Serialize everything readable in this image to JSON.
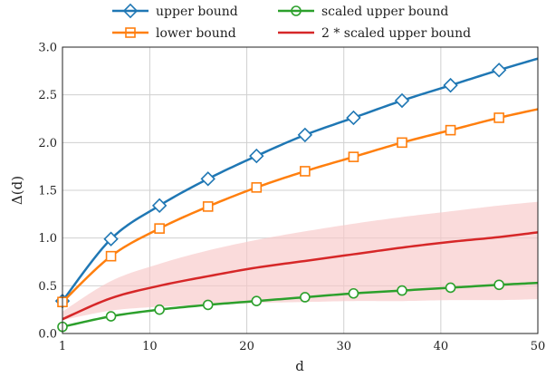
{
  "chart_data": {
    "type": "line",
    "xlabel": "d",
    "ylabel": "Δ(d)",
    "xlim": [
      1,
      50
    ],
    "ylim": [
      0.0,
      3.0
    ],
    "xticks": [
      1,
      10,
      20,
      30,
      40,
      50
    ],
    "yticks": [
      0.0,
      0.5,
      1.0,
      1.5,
      2.0,
      2.5,
      3.0
    ],
    "grid": true,
    "legend_position": "top-outside",
    "marker_x": [
      1,
      6,
      11,
      16,
      21,
      26,
      31,
      36,
      41,
      46
    ],
    "series": [
      {
        "name": "upper bound",
        "color": "#1f77b4",
        "marker": "diamond",
        "x": [
          1,
          6,
          11,
          16,
          21,
          26,
          31,
          36,
          41,
          46,
          50
        ],
        "y": [
          0.34,
          0.99,
          1.34,
          1.62,
          1.86,
          2.08,
          2.26,
          2.44,
          2.6,
          2.76,
          2.88
        ]
      },
      {
        "name": "lower bound",
        "color": "#ff7f0e",
        "marker": "square",
        "x": [
          1,
          6,
          11,
          16,
          21,
          26,
          31,
          36,
          41,
          46,
          50
        ],
        "y": [
          0.33,
          0.81,
          1.1,
          1.33,
          1.53,
          1.7,
          1.85,
          2.0,
          2.13,
          2.26,
          2.35
        ]
      },
      {
        "name": "scaled upper bound",
        "color": "#2ca02c",
        "marker": "circle",
        "x": [
          1,
          6,
          11,
          16,
          21,
          26,
          31,
          36,
          41,
          46,
          50
        ],
        "y": [
          0.07,
          0.18,
          0.25,
          0.3,
          0.34,
          0.38,
          0.42,
          0.45,
          0.48,
          0.51,
          0.53
        ]
      },
      {
        "name": "2 * scaled upper bound",
        "color": "#d62728",
        "marker": "none",
        "x": [
          1,
          6,
          11,
          16,
          21,
          26,
          31,
          36,
          41,
          46,
          50
        ],
        "y": [
          0.15,
          0.37,
          0.5,
          0.6,
          0.69,
          0.76,
          0.83,
          0.9,
          0.96,
          1.01,
          1.06
        ],
        "band_low": [
          0.14,
          0.24,
          0.28,
          0.3,
          0.32,
          0.33,
          0.34,
          0.34,
          0.35,
          0.35,
          0.36
        ],
        "band_high": [
          0.23,
          0.55,
          0.73,
          0.87,
          0.98,
          1.07,
          1.15,
          1.22,
          1.28,
          1.34,
          1.38
        ],
        "band_color": "#f8c8c8"
      }
    ]
  }
}
